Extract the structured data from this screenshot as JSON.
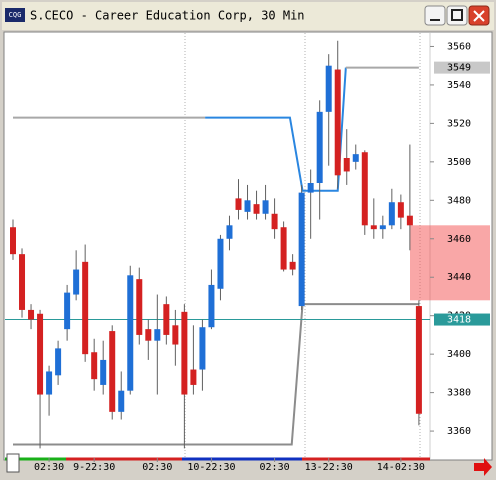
{
  "window": {
    "title": "S.CECO - Career Education Corp, 30 Min"
  },
  "chart_data": {
    "type": "candlestick",
    "categories": [
      null,
      null,
      null,
      null,
      "02:30",
      null,
      null,
      null,
      null,
      "9-22:30",
      null,
      null,
      null,
      null,
      null,
      null,
      "02:30",
      null,
      null,
      null,
      null,
      null,
      "10-22:30",
      null,
      null,
      null,
      null,
      null,
      null,
      "02:30",
      null,
      null,
      null,
      null,
      null,
      "13-22:30",
      null,
      null,
      null,
      null,
      null,
      null,
      null,
      "14-02:30",
      null,
      null
    ],
    "open": [
      3466,
      3452,
      3423,
      3421,
      3379,
      3389,
      3413,
      3431,
      3448,
      3401,
      3384,
      3412,
      3370,
      3381,
      3439,
      3413,
      3407,
      3426,
      3415,
      3422,
      3392,
      3392,
      3414,
      3434,
      3460,
      3481,
      3474,
      3478,
      3473,
      3473,
      3466,
      3448,
      3425,
      3484,
      3489,
      3526,
      3548,
      3502,
      3500,
      3505,
      3467,
      3465,
      3467,
      3479,
      3472,
      3425
    ],
    "high": [
      3470,
      3455,
      3426,
      3423,
      3394,
      3407,
      3436,
      3454,
      3457,
      3408,
      3407,
      3415,
      3391,
      3446,
      3445,
      3418,
      3431,
      3430,
      3423,
      3426,
      3415,
      3418,
      3444,
      3462,
      3472,
      3491,
      3488,
      3485,
      3488,
      3481,
      3469,
      3452,
      3488,
      3496,
      3532,
      3556,
      3563,
      3517,
      3509,
      3506,
      3481,
      3472,
      3486,
      3483,
      3509,
      3428
    ],
    "low": [
      3449,
      3419,
      3413,
      3351,
      3368,
      3384,
      3407,
      3428,
      3396,
      3381,
      3379,
      3366,
      3366,
      3379,
      3405,
      3397,
      3379,
      3405,
      3394,
      3351,
      3379,
      3381,
      3413,
      3428,
      3454,
      3470,
      3470,
      3470,
      3470,
      3460,
      3443,
      3441,
      3423,
      3460,
      3470,
      3498,
      3486,
      3488,
      3496,
      3462,
      3460,
      3460,
      3465,
      3465,
      3454,
      3363
    ],
    "close": [
      3452,
      3423,
      3418,
      3379,
      3391,
      3403,
      3432,
      3444,
      3400,
      3387,
      3397,
      3370,
      3381,
      3441,
      3410,
      3407,
      3413,
      3410,
      3405,
      3379,
      3384,
      3414,
      3436,
      3460,
      3467,
      3475,
      3480,
      3473,
      3480,
      3465,
      3444,
      3444,
      3484,
      3489,
      3526,
      3550,
      3493,
      3495,
      3504,
      3467,
      3465,
      3467,
      3479,
      3471,
      3467,
      3369
    ],
    "up_color": "#1f6fd6",
    "down_color": "#d42121",
    "ylim": [
      3346,
      3567
    ],
    "yticks": [
      3360,
      3380,
      3400,
      3420,
      3440,
      3460,
      3480,
      3500,
      3520,
      3540,
      3560
    ],
    "price_markers": [
      {
        "value": 3549,
        "color": "#c8c8c8"
      },
      {
        "value": 3418,
        "color": "#2a9a9a"
      }
    ],
    "overlays": [
      {
        "color": "#a8a8a8",
        "x": [
          0,
          21.3
        ],
        "values": [
          3523,
          3523
        ]
      },
      {
        "color": "#2a86e0",
        "x": [
          21.3,
          30.7,
          32.1,
          36,
          36.9
        ],
        "values": [
          3523,
          3523,
          3485,
          3485,
          3549
        ]
      },
      {
        "color": "#a8a8a8",
        "x": [
          36.9,
          45
        ],
        "values": [
          3549,
          3549
        ]
      },
      {
        "color": "#8c8c8c",
        "x": [
          0,
          30.9,
          32.1,
          45
        ],
        "values": [
          3353,
          3353,
          3426,
          3426
        ]
      }
    ],
    "highlight_zone": [
      3428,
      3467
    ]
  }
}
